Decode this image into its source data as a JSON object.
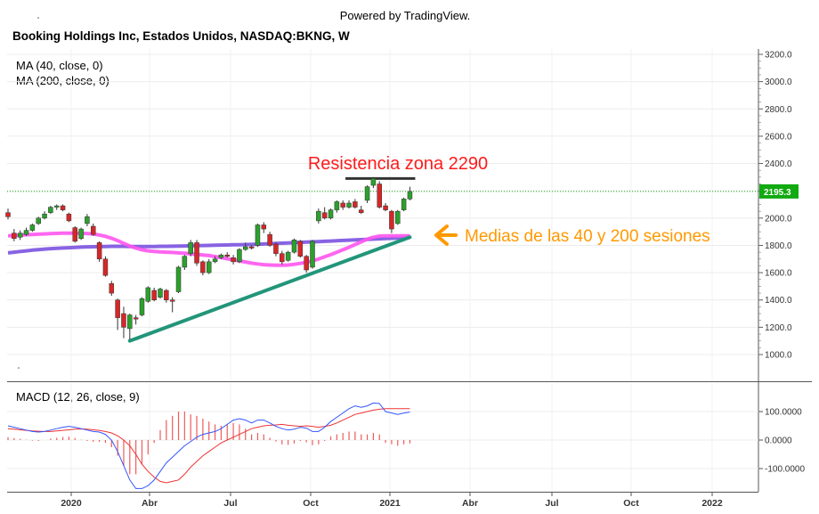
{
  "header": {
    "powered": "Powered by TradingView.",
    "title": "Booking Holdings Inc, Estados Unidos, NASDAQ:BKNG, W"
  },
  "indicators": {
    "ma40": "MA (40, close, 0)",
    "ma200": "MA (200, close, 0)",
    "macd": "MACD (12, 26, close, 9)"
  },
  "annotations": {
    "resistance": "Resistencia zona 2290",
    "medias": "Medias de las 40 y 200 sesiones"
  },
  "colors": {
    "up": "#2ca02c",
    "down": "#d62728",
    "ma40": "#ff55ee",
    "ma200": "#7b52e0",
    "trendline": "#22957a",
    "resistance_line": "#333333",
    "annotation_red": "#ff1a1a",
    "annotation_orange": "#ff9900",
    "last_price_bg": "#11aa11",
    "macd_line": "#3355ff",
    "signal_line": "#ee3333"
  },
  "chart_data": {
    "type": "candlestick",
    "title": "Booking Holdings Inc, Estados Unidos, NASDAQ:BKNG, W",
    "last_price": "2195.3",
    "y_ticks": [
      "3200.0",
      "3000.0",
      "2800.0",
      "2600.0",
      "2400.0",
      "2200.0",
      "2000.0",
      "1800.0",
      "1600.0",
      "1400.0",
      "1200.0",
      "1000.0"
    ],
    "ylim": [
      850,
      3200
    ],
    "x_ticks": [
      "2020",
      "Abr",
      "Jul",
      "Oct",
      "2021",
      "Abr",
      "Jul",
      "Oct",
      "2022"
    ],
    "candles": [
      {
        "o": 2040,
        "c": 2010,
        "h": 2070,
        "l": 1990
      },
      {
        "o": 1890,
        "c": 1850,
        "h": 1920,
        "l": 1830
      },
      {
        "o": 1860,
        "c": 1890,
        "h": 1910,
        "l": 1840
      },
      {
        "o": 1880,
        "c": 1910,
        "h": 1930,
        "l": 1870
      },
      {
        "o": 1910,
        "c": 1950,
        "h": 1960,
        "l": 1900
      },
      {
        "o": 1960,
        "c": 2000,
        "h": 2010,
        "l": 1950
      },
      {
        "o": 2000,
        "c": 2030,
        "h": 2050,
        "l": 1990
      },
      {
        "o": 2040,
        "c": 2080,
        "h": 2090,
        "l": 2030
      },
      {
        "o": 2080,
        "c": 2090,
        "h": 2100,
        "l": 2060
      },
      {
        "o": 2090,
        "c": 2060,
        "h": 2100,
        "l": 2050
      },
      {
        "o": 2030,
        "c": 1980,
        "h": 2040,
        "l": 1970
      },
      {
        "o": 1930,
        "c": 1830,
        "h": 1940,
        "l": 1820
      },
      {
        "o": 1850,
        "c": 1920,
        "h": 1930,
        "l": 1840
      },
      {
        "o": 1960,
        "c": 2010,
        "h": 2030,
        "l": 1940
      },
      {
        "o": 1940,
        "c": 1880,
        "h": 1960,
        "l": 1870
      },
      {
        "o": 1820,
        "c": 1700,
        "h": 1830,
        "l": 1680
      },
      {
        "o": 1700,
        "c": 1580,
        "h": 1720,
        "l": 1570
      },
      {
        "o": 1520,
        "c": 1450,
        "h": 1540,
        "l": 1430
      },
      {
        "o": 1400,
        "c": 1270,
        "h": 1410,
        "l": 1180
      },
      {
        "o": 1300,
        "c": 1200,
        "h": 1350,
        "l": 1120
      },
      {
        "o": 1190,
        "c": 1290,
        "h": 1300,
        "l": 1110
      },
      {
        "o": 1270,
        "c": 1260,
        "h": 1290,
        "l": 1220
      },
      {
        "o": 1290,
        "c": 1410,
        "h": 1420,
        "l": 1280
      },
      {
        "o": 1390,
        "c": 1490,
        "h": 1500,
        "l": 1380
      },
      {
        "o": 1470,
        "c": 1400,
        "h": 1490,
        "l": 1390
      },
      {
        "o": 1420,
        "c": 1480,
        "h": 1490,
        "l": 1410
      },
      {
        "o": 1470,
        "c": 1400,
        "h": 1480,
        "l": 1380
      },
      {
        "o": 1400,
        "c": 1390,
        "h": 1420,
        "l": 1310
      },
      {
        "o": 1460,
        "c": 1640,
        "h": 1650,
        "l": 1450
      },
      {
        "o": 1640,
        "c": 1720,
        "h": 1730,
        "l": 1620
      },
      {
        "o": 1740,
        "c": 1820,
        "h": 1840,
        "l": 1720
      },
      {
        "o": 1820,
        "c": 1670,
        "h": 1840,
        "l": 1650
      },
      {
        "o": 1680,
        "c": 1600,
        "h": 1690,
        "l": 1580
      },
      {
        "o": 1600,
        "c": 1680,
        "h": 1700,
        "l": 1590
      },
      {
        "o": 1680,
        "c": 1700,
        "h": 1720,
        "l": 1670
      },
      {
        "o": 1710,
        "c": 1730,
        "h": 1740,
        "l": 1700
      },
      {
        "o": 1730,
        "c": 1720,
        "h": 1750,
        "l": 1710
      },
      {
        "o": 1710,
        "c": 1680,
        "h": 1730,
        "l": 1660
      },
      {
        "o": 1680,
        "c": 1770,
        "h": 1780,
        "l": 1670
      },
      {
        "o": 1770,
        "c": 1790,
        "h": 1820,
        "l": 1760
      },
      {
        "o": 1790,
        "c": 1780,
        "h": 1800,
        "l": 1770
      },
      {
        "o": 1800,
        "c": 1950,
        "h": 1960,
        "l": 1790
      },
      {
        "o": 1950,
        "c": 1920,
        "h": 1970,
        "l": 1890
      },
      {
        "o": 1880,
        "c": 1800,
        "h": 1900,
        "l": 1790
      },
      {
        "o": 1810,
        "c": 1740,
        "h": 1820,
        "l": 1720
      },
      {
        "o": 1740,
        "c": 1680,
        "h": 1760,
        "l": 1660
      },
      {
        "o": 1690,
        "c": 1750,
        "h": 1760,
        "l": 1680
      },
      {
        "o": 1750,
        "c": 1840,
        "h": 1850,
        "l": 1740
      },
      {
        "o": 1830,
        "c": 1720,
        "h": 1840,
        "l": 1710
      },
      {
        "o": 1720,
        "c": 1620,
        "h": 1730,
        "l": 1600
      },
      {
        "o": 1640,
        "c": 1830,
        "h": 1840,
        "l": 1630
      },
      {
        "o": 1980,
        "c": 2050,
        "h": 2070,
        "l": 1960
      },
      {
        "o": 2040,
        "c": 2000,
        "h": 2080,
        "l": 1990
      },
      {
        "o": 2000,
        "c": 2060,
        "h": 2070,
        "l": 1990
      },
      {
        "o": 2060,
        "c": 2120,
        "h": 2130,
        "l": 2040
      },
      {
        "o": 2110,
        "c": 2080,
        "h": 2130,
        "l": 2060
      },
      {
        "o": 2080,
        "c": 2110,
        "h": 2130,
        "l": 2070
      },
      {
        "o": 2120,
        "c": 2080,
        "h": 2140,
        "l": 2070
      },
      {
        "o": 2060,
        "c": 2040,
        "h": 2090,
        "l": 2030
      },
      {
        "o": 2130,
        "c": 2230,
        "h": 2240,
        "l": 2110
      },
      {
        "o": 2240,
        "c": 2290,
        "h": 2300,
        "l": 2220
      },
      {
        "o": 2250,
        "c": 2080,
        "h": 2270,
        "l": 2070
      },
      {
        "o": 2090,
        "c": 2060,
        "h": 2110,
        "l": 2050
      },
      {
        "o": 2050,
        "c": 1920,
        "h": 2060,
        "l": 1890
      },
      {
        "o": 1960,
        "c": 2050,
        "h": 2060,
        "l": 1950
      },
      {
        "o": 2060,
        "c": 2140,
        "h": 2150,
        "l": 2050
      },
      {
        "o": 2140,
        "c": 2195,
        "h": 2230,
        "l": 2130
      }
    ],
    "ma40": [
      1870,
      1872,
      1875,
      1878,
      1880,
      1882,
      1884,
      1886,
      1888,
      1889,
      1889,
      1889,
      1888,
      1887,
      1883,
      1876,
      1866,
      1852,
      1835,
      1815,
      1795,
      1780,
      1768,
      1760,
      1755,
      1752,
      1750,
      1748,
      1745,
      1742,
      1738,
      1734,
      1730,
      1725,
      1718,
      1710,
      1702,
      1694,
      1686,
      1678,
      1670,
      1664,
      1659,
      1656,
      1654,
      1654,
      1656,
      1661,
      1668,
      1676,
      1686,
      1700,
      1716,
      1732,
      1750,
      1768,
      1786,
      1806,
      1826,
      1846,
      1860,
      1868,
      1870,
      1870,
      1870,
      1870,
      1870
    ],
    "ma200": [
      1745,
      1750,
      1755,
      1760,
      1765,
      1769,
      1773,
      1776,
      1779,
      1781,
      1783,
      1785,
      1787,
      1789,
      1790,
      1791,
      1792,
      1793,
      1793,
      1793,
      1792,
      1792,
      1792,
      1792,
      1792,
      1793,
      1793,
      1794,
      1795,
      1796,
      1797,
      1798,
      1799,
      1800,
      1801,
      1802,
      1803,
      1804,
      1805,
      1806,
      1807,
      1808,
      1810,
      1812,
      1814,
      1816,
      1818,
      1820,
      1822,
      1824,
      1826,
      1828,
      1830,
      1832,
      1834,
      1836,
      1838,
      1840,
      1842,
      1844,
      1846,
      1848,
      1850,
      1852,
      1854,
      1856,
      1858
    ],
    "trendline": {
      "from": {
        "i": 20,
        "v": 1100
      },
      "to": {
        "i": 66,
        "v": 1860
      }
    },
    "resistance": {
      "from_i": 56,
      "to_i": 66,
      "v": 2290
    },
    "macd": {
      "y_ticks": [
        "100.0000",
        "0.0000",
        "-100.0000"
      ],
      "ylim": [
        -180,
        140
      ],
      "macd_line": [
        50,
        45,
        40,
        35,
        30,
        28,
        30,
        35,
        40,
        45,
        48,
        45,
        40,
        35,
        30,
        28,
        20,
        0,
        -40,
        -90,
        -140,
        -170,
        -170,
        -160,
        -140,
        -110,
        -80,
        -60,
        -40,
        -20,
        -5,
        10,
        20,
        25,
        30,
        40,
        55,
        70,
        75,
        70,
        60,
        70,
        70,
        60,
        48,
        40,
        35,
        38,
        45,
        42,
        30,
        30,
        45,
        65,
        80,
        95,
        110,
        120,
        115,
        120,
        130,
        128,
        100,
        95,
        90,
        95,
        98
      ],
      "signal_line": [
        40,
        38,
        36,
        34,
        32,
        31,
        30,
        30,
        32,
        34,
        36,
        38,
        39,
        38,
        36,
        34,
        30,
        25,
        15,
        0,
        -20,
        -50,
        -85,
        -110,
        -130,
        -145,
        -150,
        -145,
        -140,
        -120,
        -95,
        -75,
        -55,
        -40,
        -25,
        -10,
        0,
        10,
        20,
        30,
        40,
        45,
        50,
        52,
        53,
        55,
        52,
        50,
        48,
        50,
        48,
        45,
        48,
        52,
        60,
        70,
        80,
        90,
        95,
        100,
        105,
        108,
        110,
        110,
        110,
        110,
        110
      ],
      "histogram": [
        10,
        7,
        4,
        1,
        -2,
        -3,
        0,
        5,
        8,
        11,
        12,
        7,
        1,
        -3,
        -6,
        -6,
        -10,
        -25,
        -55,
        -90,
        -120,
        -120,
        -85,
        -50,
        -10,
        35,
        70,
        85,
        100,
        100,
        90,
        85,
        75,
        65,
        55,
        50,
        55,
        60,
        55,
        40,
        20,
        25,
        20,
        8,
        -5,
        -15,
        -17,
        -12,
        -3,
        -8,
        -18,
        -15,
        -3,
        13,
        20,
        25,
        30,
        30,
        20,
        20,
        25,
        20,
        -10,
        -15,
        -20,
        -15,
        -12
      ]
    }
  }
}
